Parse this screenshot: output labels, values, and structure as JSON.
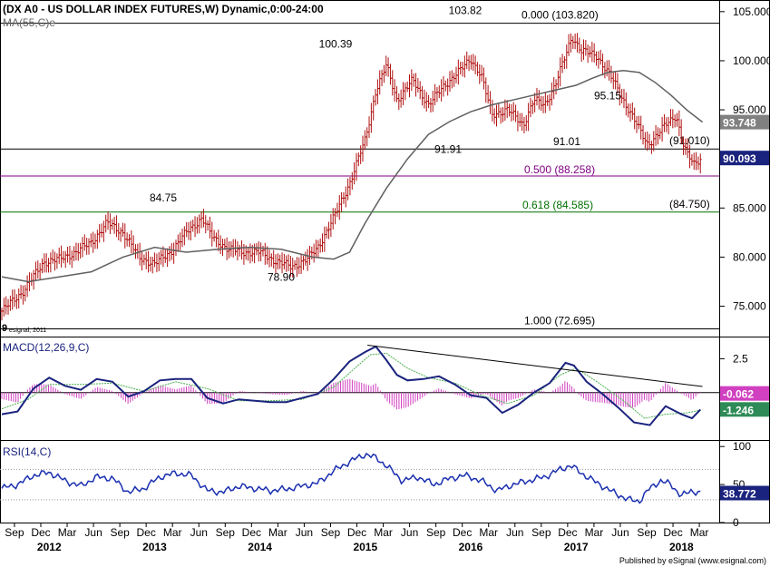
{
  "header": {
    "title": "(DX A0 - US DOLLAR INDEX FUTURES,W) Dynamic,0:00-24:00",
    "ma_label": "MA(55,C)e",
    "macd_label": "MACD(12,26,9,C)",
    "rsi_label": "RSI(14,C)",
    "watermark": "esignal, 2011",
    "watermark_mark": "9",
    "footer": "Published by eSignal (www.esignal.com)"
  },
  "colors": {
    "price_bars": "#b01010",
    "ma": "#606060",
    "macd": "#1a237e",
    "signal": "#4caf50",
    "histogram": "#d040c0",
    "rsi": "#1a2fb0",
    "fib_purple": "#800080",
    "fib_green": "#007000",
    "last_price_bg": "#1a237e",
    "ma_tag_bg": "#808080",
    "macd_tag_bg": "#d040c0",
    "signal_tag_bg": "#2e8b57",
    "rsi_tag_bg": "#1a237e"
  },
  "chart_data": [
    {
      "type": "bar",
      "name_panel": "price",
      "ylim": [
        72,
        106
      ],
      "yticks": [
        75,
        80,
        85,
        90,
        95,
        100,
        105
      ],
      "ytick_labels": [
        "75.000",
        "80.000",
        "85.000",
        "90.000",
        "95.000",
        "100.000",
        "105.000"
      ],
      "series": [
        {
          "name": "DX A0 close",
          "x": [
            2011.55,
            2011.75,
            2011.95,
            2012.1,
            2012.25,
            2012.4,
            2012.55,
            2012.7,
            2012.85,
            2013.0,
            2013.15,
            2013.3,
            2013.45,
            2013.55,
            2013.7,
            2013.85,
            2014.0,
            2014.15,
            2014.3,
            2014.45,
            2014.55,
            2014.7,
            2014.85,
            2015.0,
            2015.1,
            2015.2,
            2015.3,
            2015.45,
            2015.6,
            2015.75,
            2015.9,
            2016.0,
            2016.1,
            2016.2,
            2016.35,
            2016.5,
            2016.6,
            2016.7,
            2016.8,
            2016.9,
            2016.96,
            2017.05,
            2017.2,
            2017.35,
            2017.5,
            2017.6,
            2017.68,
            2017.78,
            2017.85,
            2017.95,
            2018.0,
            2018.05,
            2018.12,
            2018.18
          ],
          "values": [
            74.5,
            76.5,
            79.5,
            79.8,
            80.5,
            81.5,
            83.5,
            82.5,
            80.0,
            79.3,
            80.5,
            82.5,
            84.0,
            82.0,
            80.8,
            80.5,
            80.5,
            79.6,
            79.0,
            79.8,
            81.0,
            84.0,
            87.5,
            92.0,
            97.0,
            99.5,
            96.0,
            98.0,
            95.5,
            97.5,
            99.0,
            100.2,
            98.5,
            94.5,
            95.0,
            93.5,
            96.0,
            95.5,
            97.5,
            100.5,
            102.5,
            101.0,
            100.5,
            98.0,
            95.0,
            93.0,
            91.5,
            92.5,
            93.5,
            94.5,
            92.0,
            90.5,
            89.5,
            90.1
          ]
        }
      ],
      "moving_average": {
        "label": "MA(55,C)e",
        "x": [
          2011.55,
          2011.8,
          2012.1,
          2012.4,
          2012.7,
          2013.0,
          2013.3,
          2013.6,
          2013.9,
          2014.2,
          2014.5,
          2014.7,
          2014.85,
          2015.0,
          2015.2,
          2015.4,
          2015.6,
          2015.8,
          2016.0,
          2016.2,
          2016.4,
          2016.6,
          2016.8,
          2017.0,
          2017.15,
          2017.3,
          2017.45,
          2017.6,
          2017.75,
          2017.9,
          2018.05,
          2018.2
        ],
        "values": [
          78.0,
          77.5,
          78.0,
          78.5,
          80.0,
          81.0,
          80.5,
          80.8,
          81.0,
          80.8,
          80.0,
          79.8,
          80.5,
          83.5,
          87.0,
          90.0,
          92.5,
          93.8,
          94.8,
          95.5,
          96.0,
          96.5,
          97.0,
          97.5,
          98.2,
          98.8,
          99.0,
          98.8,
          97.8,
          96.5,
          95.0,
          93.75
        ]
      },
      "annotations": [
        {
          "text": "84.75",
          "x": 2013.45,
          "y": 84.75
        },
        {
          "text": "78.90",
          "x": 2014.3,
          "y": 78.9
        },
        {
          "text": "100.39",
          "x": 2015.0,
          "y": 100.39
        },
        {
          "text": "103.82",
          "x": 2016.0,
          "y": 103.82
        },
        {
          "text": "91.91",
          "x": 2016.25,
          "y": 91.91
        },
        {
          "text": "91.01",
          "x": 2017.7,
          "y": 91.01
        },
        {
          "text": "95.15",
          "x": 2017.9,
          "y": 95.15
        }
      ],
      "levels": [
        {
          "label": "0.000 (103.820)",
          "value": 103.82,
          "style": "black"
        },
        {
          "label": "(91.010)",
          "value": 91.01,
          "style": "black"
        },
        {
          "label": "0.500 (88.258)",
          "value": 88.258,
          "style": "purple"
        },
        {
          "label": "0.618 (84.585)",
          "value": 84.585,
          "style": "green"
        },
        {
          "label": "(84.750)",
          "value": 84.75,
          "style": "black"
        },
        {
          "label": "1.000 (72.695)",
          "value": 72.695,
          "style": "black"
        }
      ],
      "last_tags": [
        {
          "label": "93.748",
          "value": 93.748,
          "style": "ma"
        },
        {
          "label": "90.093",
          "value": 90.093,
          "style": "last"
        }
      ]
    },
    {
      "type": "line",
      "name_panel": "macd",
      "ylim": [
        -3.5,
        4.0
      ],
      "yticks": [
        2.5
      ],
      "ytick_labels": [
        "2.5"
      ],
      "series": [
        {
          "name": "MACD",
          "x": [
            2011.55,
            2011.7,
            2011.85,
            2012.0,
            2012.15,
            2012.3,
            2012.45,
            2012.6,
            2012.75,
            2012.9,
            2013.05,
            2013.2,
            2013.35,
            2013.5,
            2013.65,
            2013.8,
            2013.95,
            2014.1,
            2014.25,
            2014.4,
            2014.55,
            2014.7,
            2014.85,
            2015.0,
            2015.1,
            2015.2,
            2015.3,
            2015.4,
            2015.55,
            2015.7,
            2015.85,
            2016.0,
            2016.15,
            2016.3,
            2016.45,
            2016.6,
            2016.75,
            2016.9,
            2016.98,
            2017.1,
            2017.25,
            2017.4,
            2017.55,
            2017.7,
            2017.85,
            2018.0,
            2018.1,
            2018.18
          ],
          "values": [
            -1.6,
            -1.4,
            0.3,
            1.1,
            0.5,
            0.2,
            1.0,
            0.8,
            -0.3,
            0.1,
            0.9,
            1.0,
            1.0,
            -0.4,
            -0.8,
            -0.5,
            -0.6,
            -0.7,
            -0.7,
            -0.4,
            -0.1,
            1.0,
            2.3,
            3.0,
            3.4,
            2.4,
            1.3,
            0.9,
            1.0,
            1.2,
            0.6,
            -0.2,
            -0.4,
            -1.5,
            -0.9,
            0.0,
            0.7,
            2.2,
            2.0,
            0.8,
            -0.1,
            -1.1,
            -2.2,
            -2.4,
            -1.0,
            -1.6,
            -1.9,
            -1.25
          ]
        },
        {
          "name": "Signal",
          "x": [
            2011.55,
            2011.8,
            2012.0,
            2012.3,
            2012.6,
            2012.9,
            2013.2,
            2013.5,
            2013.8,
            2014.1,
            2014.4,
            2014.7,
            2014.9,
            2015.05,
            2015.2,
            2015.4,
            2015.6,
            2015.85,
            2016.1,
            2016.35,
            2016.6,
            2016.85,
            2017.0,
            2017.2,
            2017.45,
            2017.65,
            2017.85,
            2018.05,
            2018.18
          ],
          "values": [
            -1.2,
            -0.5,
            0.6,
            0.6,
            0.7,
            0.1,
            0.8,
            0.3,
            -0.6,
            -0.6,
            -0.5,
            0.4,
            1.8,
            2.8,
            2.9,
            1.8,
            1.1,
            0.7,
            -0.2,
            -0.8,
            -0.2,
            1.3,
            1.8,
            0.8,
            -0.6,
            -1.9,
            -1.6,
            -1.5,
            -1.3
          ]
        }
      ],
      "tags": [
        {
          "label": "-0.062",
          "value": -0.062,
          "style": "hist"
        },
        {
          "label": "-1.246",
          "value": -1.246,
          "style": "signal"
        }
      ],
      "trendline": [
        {
          "x": 2015.02,
          "y": 3.5
        },
        {
          "x": 2018.2,
          "y": 0.45
        }
      ]
    },
    {
      "type": "line",
      "name_panel": "rsi",
      "ylim": [
        0,
        105
      ],
      "yticks": [
        0,
        50,
        100
      ],
      "ytick_labels": [
        "0",
        "50",
        "100"
      ],
      "levels": [
        30,
        70
      ],
      "series": [
        {
          "name": "RSI",
          "x": [
            2011.55,
            2011.7,
            2011.85,
            2012.0,
            2012.15,
            2012.3,
            2012.45,
            2012.6,
            2012.75,
            2012.9,
            2013.05,
            2013.2,
            2013.35,
            2013.5,
            2013.65,
            2013.8,
            2013.95,
            2014.1,
            2014.25,
            2014.4,
            2014.55,
            2014.7,
            2014.85,
            2015.0,
            2015.1,
            2015.2,
            2015.35,
            2015.5,
            2015.65,
            2015.8,
            2015.95,
            2016.1,
            2016.25,
            2016.4,
            2016.55,
            2016.7,
            2016.85,
            2016.95,
            2017.05,
            2017.2,
            2017.35,
            2017.5,
            2017.6,
            2017.7,
            2017.8,
            2017.9,
            2018.0,
            2018.1,
            2018.18
          ],
          "values": [
            45,
            50,
            62,
            66,
            55,
            48,
            60,
            58,
            40,
            45,
            60,
            65,
            62,
            42,
            40,
            48,
            45,
            42,
            44,
            48,
            52,
            68,
            80,
            90,
            85,
            75,
            55,
            60,
            50,
            58,
            62,
            55,
            42,
            50,
            55,
            60,
            70,
            75,
            65,
            52,
            40,
            30,
            28,
            45,
            55,
            50,
            35,
            42,
            38.8
          ]
        }
      ],
      "tags": [
        {
          "label": "38.772",
          "value": 38.772
        }
      ]
    }
  ],
  "time_axis": {
    "month_labels": [
      {
        "text": "Sep",
        "x": 2011.67
      },
      {
        "text": "Dec",
        "x": 2011.92
      },
      {
        "text": "Mar",
        "x": 2012.17
      },
      {
        "text": "Jun",
        "x": 2012.42
      },
      {
        "text": "Sep",
        "x": 2012.67
      },
      {
        "text": "Dec",
        "x": 2012.92
      },
      {
        "text": "Mar",
        "x": 2013.17
      },
      {
        "text": "Jun",
        "x": 2013.42
      },
      {
        "text": "Sep",
        "x": 2013.67
      },
      {
        "text": "Dec",
        "x": 2013.92
      },
      {
        "text": "Mar",
        "x": 2014.17
      },
      {
        "text": "Jun",
        "x": 2014.42
      },
      {
        "text": "Sep",
        "x": 2014.67
      },
      {
        "text": "Dec",
        "x": 2014.92
      },
      {
        "text": "Mar",
        "x": 2015.17
      },
      {
        "text": "Jun",
        "x": 2015.42
      },
      {
        "text": "Sep",
        "x": 2015.67
      },
      {
        "text": "Dec",
        "x": 2015.92
      },
      {
        "text": "Mar",
        "x": 2016.17
      },
      {
        "text": "Jun",
        "x": 2016.42
      },
      {
        "text": "Sep",
        "x": 2016.67
      },
      {
        "text": "Dec",
        "x": 2016.92
      },
      {
        "text": "Mar",
        "x": 2017.17
      },
      {
        "text": "Jun",
        "x": 2017.42
      },
      {
        "text": "Sep",
        "x": 2017.67
      },
      {
        "text": "Dec",
        "x": 2017.92
      },
      {
        "text": "Mar",
        "x": 2018.17
      }
    ],
    "year_labels": [
      {
        "text": "2012",
        "x": 2012.0
      },
      {
        "text": "2013",
        "x": 2013.0
      },
      {
        "text": "2014",
        "x": 2014.0
      },
      {
        "text": "2015",
        "x": 2015.0
      },
      {
        "text": "2016",
        "x": 2016.0
      },
      {
        "text": "2017",
        "x": 2017.0
      },
      {
        "text": "2018",
        "x": 2018.0
      }
    ]
  }
}
